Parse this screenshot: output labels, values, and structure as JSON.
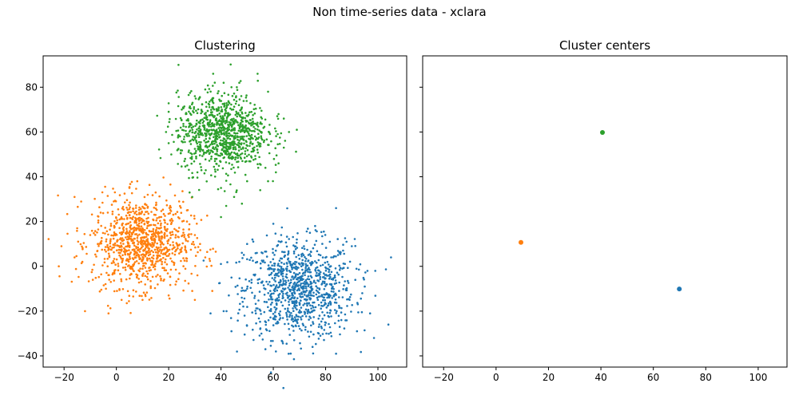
{
  "figure": {
    "title": "Non time-series data - xclara"
  },
  "chart_data": [
    {
      "type": "scatter",
      "title": "Clustering",
      "xlabel": "",
      "ylabel": "",
      "xlim": [
        -28,
        111
      ],
      "ylim": [
        -45,
        94
      ],
      "xticks": [
        -20,
        0,
        20,
        40,
        60,
        80,
        100
      ],
      "yticks": [
        -40,
        -20,
        0,
        20,
        40,
        60,
        80
      ],
      "xtick_labels": [
        "−20",
        "0",
        "20",
        "40",
        "60",
        "80",
        "100"
      ],
      "ytick_labels": [
        "−40",
        "−20",
        "0",
        "20",
        "40",
        "60",
        "80"
      ],
      "series": [
        {
          "color": "#1f77b4",
          "center": [
            69.9,
            -10.1
          ],
          "spread": [
            10.5,
            11
          ],
          "points": [
            [
              44,
              -29
            ],
            [
              36,
              -21
            ],
            [
              57,
              -37
            ],
            [
              61,
              -38
            ],
            [
              84,
              -39
            ],
            [
              68,
              -33
            ],
            [
              75,
              -36
            ],
            [
              92,
              -29
            ],
            [
              97,
              -21
            ],
            [
              104,
              -26
            ],
            [
              105,
              4
            ],
            [
              99,
              -2
            ],
            [
              90,
              9
            ],
            [
              84,
              26
            ],
            [
              76,
              18
            ],
            [
              69,
              12
            ],
            [
              60,
              19
            ],
            [
              52,
              12
            ],
            [
              50,
              10
            ],
            [
              47,
              2
            ],
            [
              44,
              -5
            ],
            [
              43,
              -13
            ],
            [
              41,
              -20
            ],
            [
              49,
              -22
            ],
            [
              55,
              -28
            ],
            [
              66,
              -28
            ],
            [
              78,
              -31
            ],
            [
              86,
              -24
            ],
            [
              94,
              -12
            ],
            [
              96,
              -2
            ],
            [
              88,
              11
            ],
            [
              74,
              15
            ],
            [
              63,
              14
            ],
            [
              56,
              2
            ],
            [
              50,
              -10
            ]
          ]
        },
        {
          "color": "#ff7f0e",
          "center": [
            9.8,
            10.6
          ],
          "spread": [
            9.5,
            10
          ],
          "points": [
            [
              -22,
              0
            ],
            [
              -21,
              9
            ],
            [
              -16,
              4
            ],
            [
              -15,
              17
            ],
            [
              -16,
              31
            ],
            [
              -12,
              -20
            ],
            [
              -3,
              -21
            ],
            [
              8,
              38
            ],
            [
              12,
              32
            ],
            [
              5,
              35
            ],
            [
              27,
              20
            ],
            [
              30,
              14
            ],
            [
              34,
              4
            ],
            [
              31,
              -4
            ],
            [
              29,
              -11
            ],
            [
              30,
              -15
            ],
            [
              20,
              -13
            ],
            [
              10,
              -15
            ],
            [
              2,
              -15
            ],
            [
              -4,
              -10
            ],
            [
              -9,
              -6
            ],
            [
              -13,
              2
            ],
            [
              -10,
              14
            ],
            [
              -6,
              24
            ],
            [
              -1,
              29
            ],
            [
              15,
              33
            ],
            [
              24,
              29
            ],
            [
              27,
              25
            ],
            [
              32,
              10
            ]
          ]
        },
        {
          "color": "#2ca02c",
          "center": [
            40.6,
            59.7
          ],
          "spread": [
            8.5,
            8.5
          ],
          "points": [
            [
              29,
              31
            ],
            [
              28,
              33
            ],
            [
              40,
              22
            ],
            [
              42,
              27
            ],
            [
              40,
              35
            ],
            [
              45,
              31
            ],
            [
              48,
              28
            ],
            [
              55,
              34
            ],
            [
              58,
              38
            ],
            [
              61,
              42
            ],
            [
              62,
              46
            ],
            [
              64,
              53
            ],
            [
              69,
              61
            ],
            [
              66,
              60
            ],
            [
              62,
              68
            ],
            [
              58,
              78
            ],
            [
              54,
              86
            ],
            [
              47,
              82
            ],
            [
              44,
              80
            ],
            [
              37,
              86
            ],
            [
              41,
              82
            ],
            [
              34,
              79
            ],
            [
              30,
              76
            ],
            [
              25,
              70
            ],
            [
              20,
              69
            ],
            [
              19,
              60
            ],
            [
              20,
              55
            ],
            [
              21,
              50
            ],
            [
              26,
              47
            ],
            [
              31,
              42
            ],
            [
              50,
              38
            ],
            [
              57,
              44
            ],
            [
              64,
              66
            ]
          ]
        }
      ]
    },
    {
      "type": "scatter",
      "title": "Cluster centers",
      "xlabel": "",
      "ylabel": "",
      "xlim": [
        -28,
        111
      ],
      "ylim": [
        -45,
        94
      ],
      "xticks": [
        -20,
        0,
        20,
        40,
        60,
        80,
        100
      ],
      "yticks": [
        -40,
        -20,
        0,
        20,
        40,
        60,
        80
      ],
      "xtick_labels": [
        "−20",
        "0",
        "20",
        "40",
        "60",
        "80",
        "100"
      ],
      "show_ytick_labels": false,
      "series": [
        {
          "color": "#1f77b4",
          "points": [
            [
              69.9,
              -10.1
            ]
          ]
        },
        {
          "color": "#ff7f0e",
          "points": [
            [
              9.5,
              10.7
            ]
          ]
        },
        {
          "color": "#2ca02c",
          "points": [
            [
              40.6,
              59.8
            ]
          ]
        }
      ]
    }
  ]
}
